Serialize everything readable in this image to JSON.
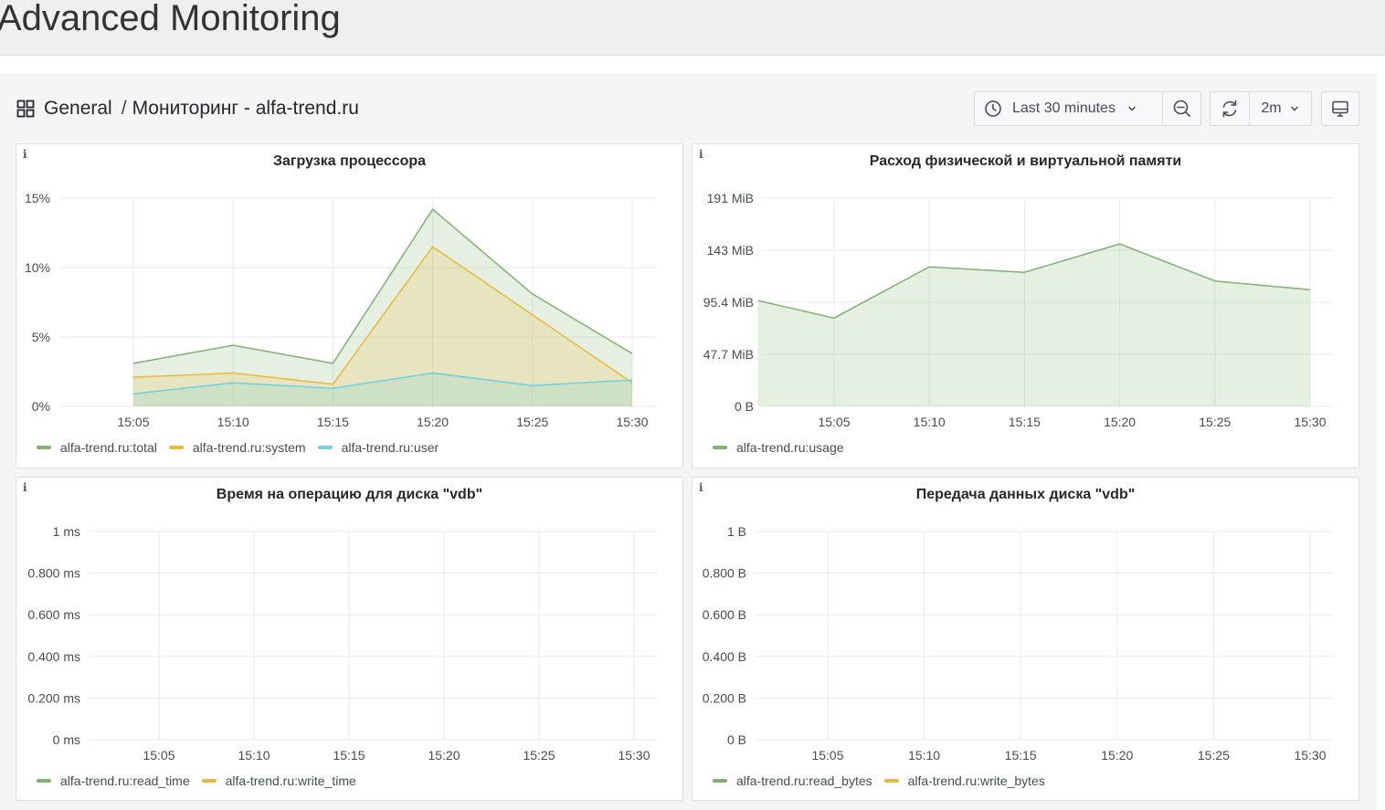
{
  "page": {
    "title": "Advanced Monitoring"
  },
  "breadcrumb": {
    "folder": "General",
    "separator": "/",
    "dashboard": "Мониторинг - alfa-trend.ru"
  },
  "toolbar": {
    "time_range": "Last 30 minutes",
    "refresh_interval": "2m"
  },
  "panels": [
    {
      "title": "Загрузка процессора",
      "info": "i",
      "legend": [
        {
          "label": "alfa-trend.ru:total",
          "color": "#7eb26d"
        },
        {
          "label": "alfa-trend.ru:system",
          "color": "#eab839"
        },
        {
          "label": "alfa-trend.ru:user",
          "color": "#6ed0e0"
        }
      ]
    },
    {
      "title": "Расход физической и виртуальной памяти",
      "info": "i",
      "legend": [
        {
          "label": "alfa-trend.ru:usage",
          "color": "#7eb26d"
        }
      ]
    },
    {
      "title": "Время на операцию для диска \"vdb\"",
      "info": "i",
      "legend": [
        {
          "label": "alfa-trend.ru:read_time",
          "color": "#7eb26d"
        },
        {
          "label": "alfa-trend.ru:write_time",
          "color": "#eab839"
        }
      ]
    },
    {
      "title": "Передача данных диска \"vdb\"",
      "info": "i",
      "legend": [
        {
          "label": "alfa-trend.ru:read_bytes",
          "color": "#7eb26d"
        },
        {
          "label": "alfa-trend.ru:write_bytes",
          "color": "#eab839"
        }
      ]
    }
  ],
  "chart_data": [
    {
      "type": "area",
      "title": "Загрузка процессора",
      "x_ticks": [
        "15:05",
        "15:10",
        "15:15",
        "15:20",
        "15:25",
        "15:30"
      ],
      "y_ticks": [
        "0%",
        "5%",
        "10%",
        "15%"
      ],
      "ylim": [
        0,
        15
      ],
      "x": [
        "15:05",
        "15:10",
        "15:15",
        "15:20",
        "15:25",
        "15:30"
      ],
      "series": [
        {
          "name": "alfa-trend.ru:total",
          "color": "#7eb26d",
          "values": [
            3.1,
            4.4,
            3.1,
            14.2,
            8.1,
            3.8
          ]
        },
        {
          "name": "alfa-trend.ru:system",
          "color": "#eab839",
          "values": [
            2.1,
            2.4,
            1.6,
            11.5,
            6.6,
            1.7
          ]
        },
        {
          "name": "alfa-trend.ru:user",
          "color": "#6ed0e0",
          "values": [
            0.9,
            1.7,
            1.3,
            2.4,
            1.5,
            1.9
          ]
        }
      ]
    },
    {
      "type": "area",
      "title": "Расход физической и виртуальной памяти",
      "x_ticks": [
        "15:05",
        "15:10",
        "15:15",
        "15:20",
        "15:25",
        "15:30"
      ],
      "y_ticks": [
        "0 B",
        "47.7 MiB",
        "95.4 MiB",
        "143 MiB",
        "191 MiB"
      ],
      "ylim": [
        0,
        191
      ],
      "x": [
        "15:01",
        "15:05",
        "15:10",
        "15:15",
        "15:20",
        "15:25",
        "15:30"
      ],
      "series": [
        {
          "name": "alfa-trend.ru:usage",
          "color": "#7eb26d",
          "values": [
            97,
            81,
            128,
            123,
            149,
            115,
            107
          ]
        }
      ]
    },
    {
      "type": "line",
      "title": "Время на операцию для диска \"vdb\"",
      "x_ticks": [
        "15:05",
        "15:10",
        "15:15",
        "15:20",
        "15:25",
        "15:30"
      ],
      "y_ticks": [
        "0 ms",
        "0.200 ms",
        "0.400 ms",
        "0.600 ms",
        "0.800 ms",
        "1 ms"
      ],
      "ylim": [
        0,
        1
      ],
      "series": [
        {
          "name": "alfa-trend.ru:read_time",
          "color": "#7eb26d",
          "values": []
        },
        {
          "name": "alfa-trend.ru:write_time",
          "color": "#eab839",
          "values": []
        }
      ]
    },
    {
      "type": "line",
      "title": "Передача данных диска \"vdb\"",
      "x_ticks": [
        "15:05",
        "15:10",
        "15:15",
        "15:20",
        "15:25",
        "15:30"
      ],
      "y_ticks": [
        "0 B",
        "0.200 B",
        "0.400 B",
        "0.600 B",
        "0.800 B",
        "1 B"
      ],
      "ylim": [
        0,
        1
      ],
      "series": [
        {
          "name": "alfa-trend.ru:read_bytes",
          "color": "#7eb26d",
          "values": []
        },
        {
          "name": "alfa-trend.ru:write_bytes",
          "color": "#eab839",
          "values": []
        }
      ]
    }
  ]
}
